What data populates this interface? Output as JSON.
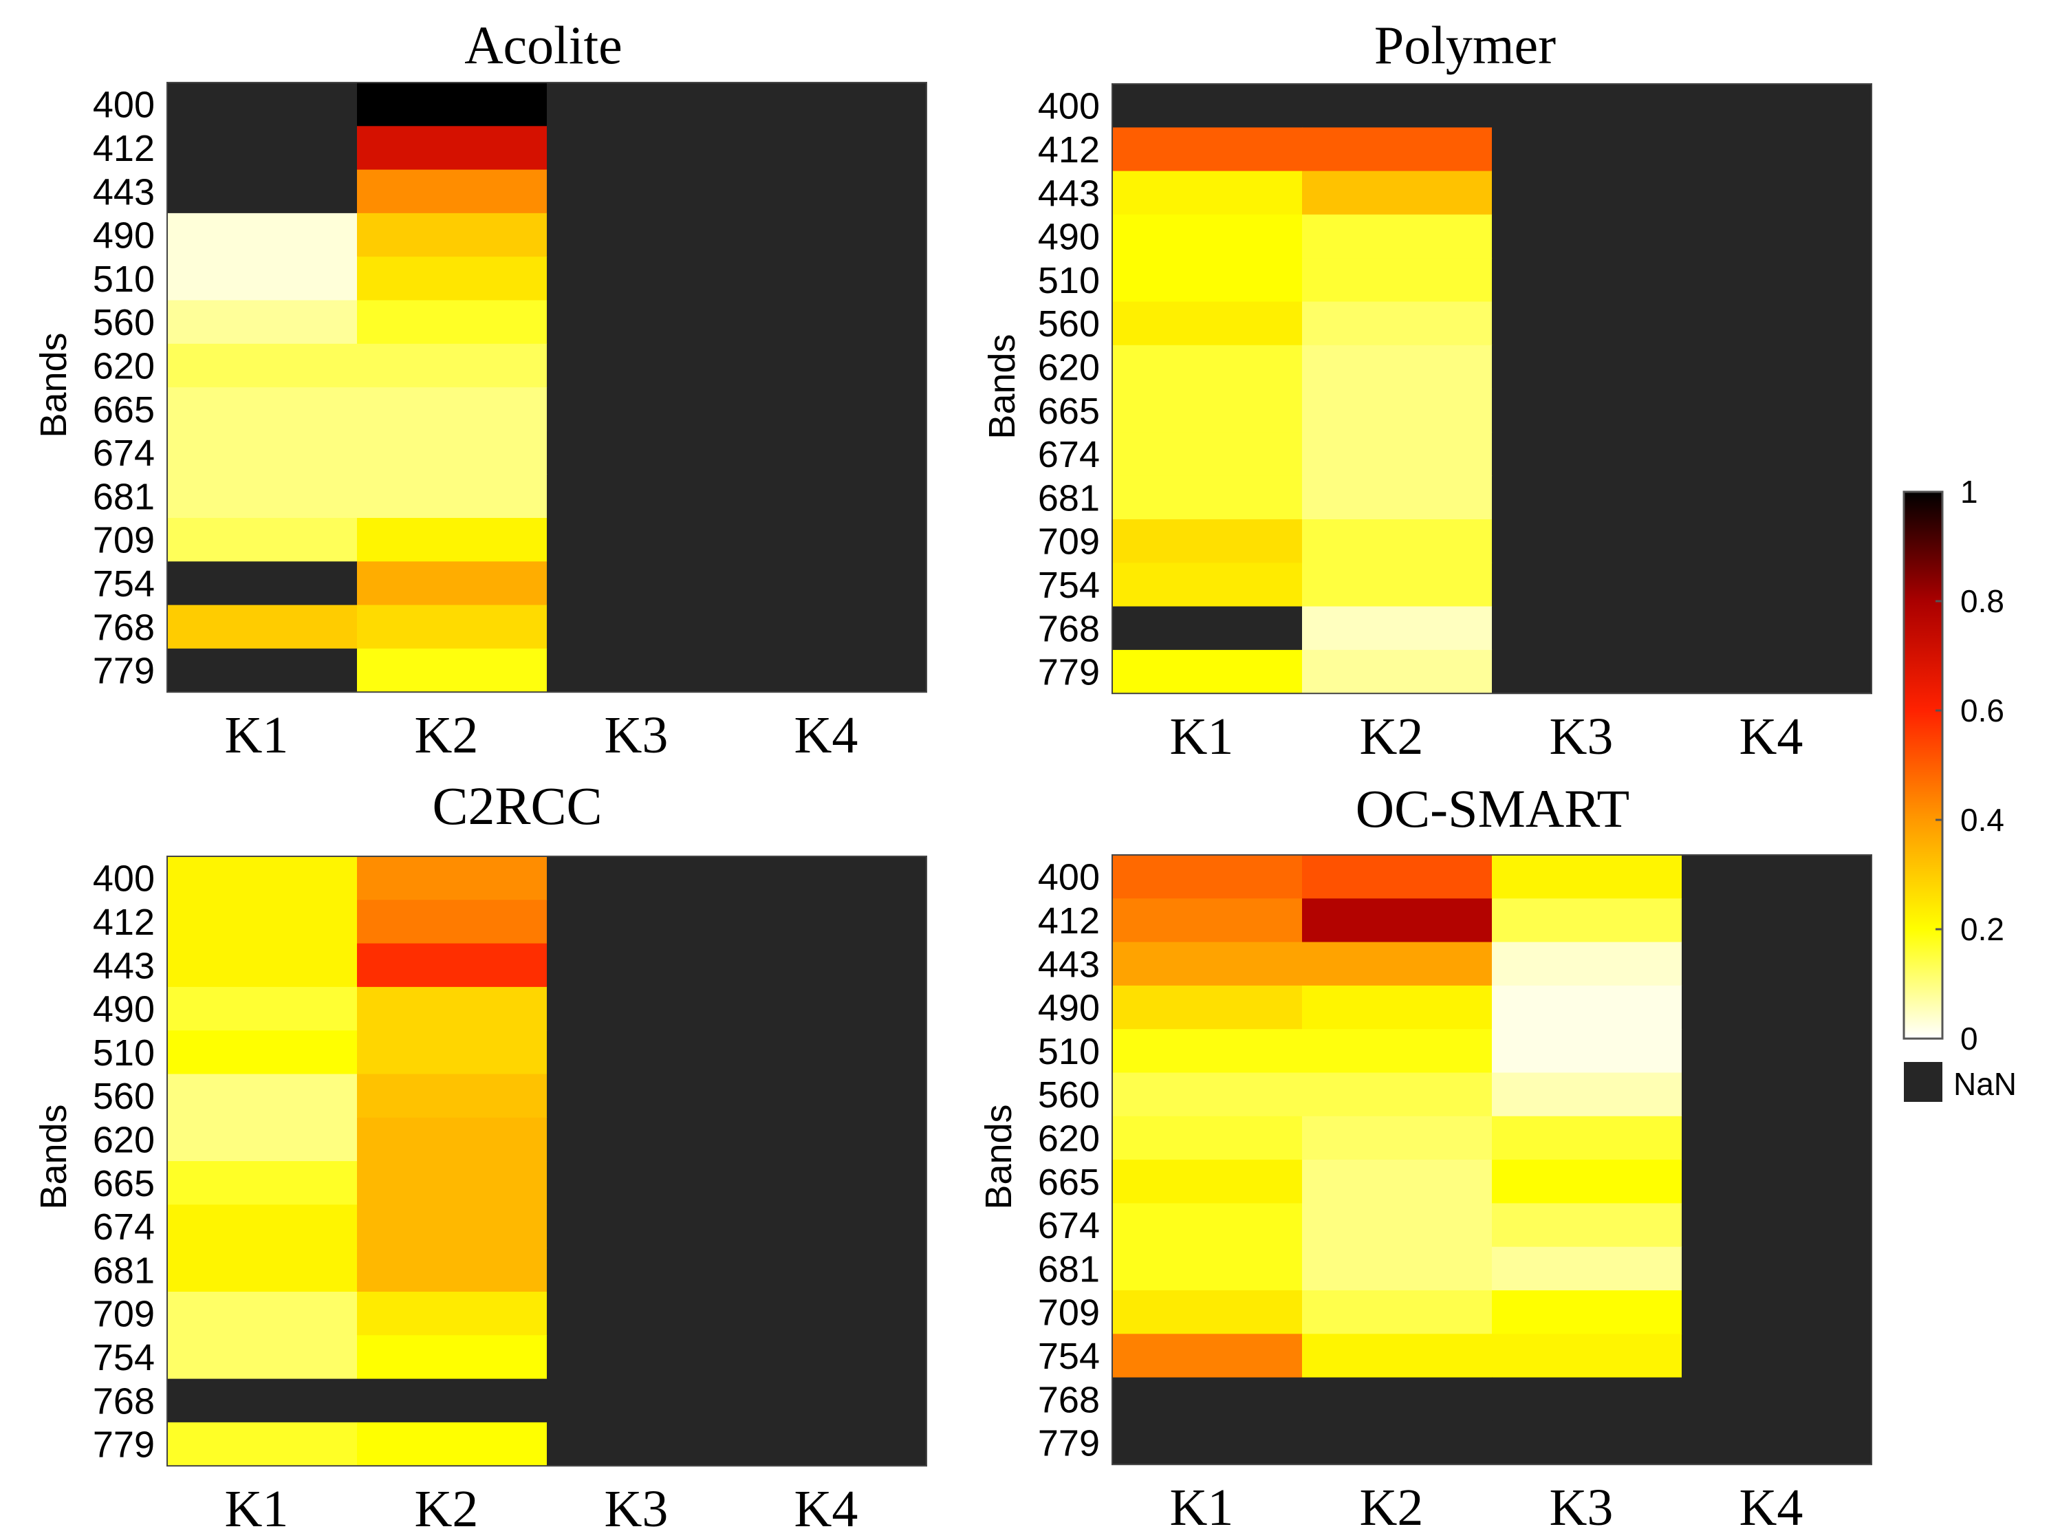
{
  "chart_data": {
    "type": "heatmap",
    "shared": {
      "bands": [
        "400",
        "412",
        "443",
        "490",
        "510",
        "560",
        "620",
        "665",
        "674",
        "681",
        "709",
        "754",
        "768",
        "779"
      ],
      "clusters": [
        "K1",
        "K2",
        "K3",
        "K4"
      ],
      "ylabel": "Bands",
      "colorbar": {
        "ticks": [
          "1",
          "0.8",
          "0.6",
          "0.4",
          "0.2",
          "0"
        ],
        "range": [
          0,
          1
        ],
        "nan_label": "NaN",
        "nan_color": "#262626"
      }
    },
    "panels": [
      {
        "title": "Acolite",
        "show_ylabel": true,
        "values": [
          [
            null,
            1.0,
            null,
            null
          ],
          [
            null,
            0.7,
            null,
            null
          ],
          [
            null,
            0.42,
            null,
            null
          ],
          [
            0.03,
            0.3,
            null,
            null
          ],
          [
            0.03,
            0.25,
            null,
            null
          ],
          [
            0.08,
            0.17,
            null,
            null
          ],
          [
            0.13,
            0.13,
            null,
            null
          ],
          [
            0.1,
            0.1,
            null,
            null
          ],
          [
            0.1,
            0.1,
            null,
            null
          ],
          [
            0.1,
            0.1,
            null,
            null
          ],
          [
            0.13,
            0.22,
            null,
            null
          ],
          [
            null,
            0.36,
            null,
            null
          ],
          [
            0.3,
            0.27,
            null,
            null
          ],
          [
            null,
            0.19,
            null,
            null
          ]
        ]
      },
      {
        "title": "Polymer",
        "show_ylabel": true,
        "values": [
          [
            null,
            null,
            null,
            null
          ],
          [
            0.5,
            0.5,
            null,
            null
          ],
          [
            0.22,
            0.32,
            null,
            null
          ],
          [
            0.2,
            0.16,
            null,
            null
          ],
          [
            0.2,
            0.16,
            null,
            null
          ],
          [
            0.23,
            0.12,
            null,
            null
          ],
          [
            0.16,
            0.1,
            null,
            null
          ],
          [
            0.16,
            0.1,
            null,
            null
          ],
          [
            0.16,
            0.1,
            null,
            null
          ],
          [
            0.16,
            0.1,
            null,
            null
          ],
          [
            0.26,
            0.15,
            null,
            null
          ],
          [
            0.24,
            0.15,
            null,
            null
          ],
          [
            null,
            0.05,
            null,
            null
          ],
          [
            0.2,
            0.08,
            null,
            null
          ]
        ]
      },
      {
        "title": "C2RCC",
        "show_ylabel": true,
        "values": [
          [
            0.22,
            0.42,
            null,
            null
          ],
          [
            0.22,
            0.45,
            null,
            null
          ],
          [
            0.22,
            0.58,
            null,
            null
          ],
          [
            0.16,
            0.28,
            null,
            null
          ],
          [
            0.2,
            0.28,
            null,
            null
          ],
          [
            0.1,
            0.32,
            null,
            null
          ],
          [
            0.1,
            0.34,
            null,
            null
          ],
          [
            0.17,
            0.34,
            null,
            null
          ],
          [
            0.22,
            0.34,
            null,
            null
          ],
          [
            0.22,
            0.34,
            null,
            null
          ],
          [
            0.12,
            0.24,
            null,
            null
          ],
          [
            0.12,
            0.2,
            null,
            null
          ],
          [
            null,
            null,
            null,
            null
          ],
          [
            0.17,
            0.2,
            null,
            null
          ]
        ]
      },
      {
        "title": "OC-SMART",
        "show_ylabel": true,
        "values": [
          [
            0.48,
            0.52,
            0.22,
            null
          ],
          [
            0.44,
            0.78,
            0.14,
            null
          ],
          [
            0.38,
            0.38,
            0.04,
            null
          ],
          [
            0.26,
            0.22,
            0.02,
            null
          ],
          [
            0.19,
            0.19,
            0.02,
            null
          ],
          [
            0.14,
            0.14,
            0.06,
            null
          ],
          [
            0.16,
            0.12,
            0.16,
            null
          ],
          [
            0.22,
            0.1,
            0.2,
            null
          ],
          [
            0.18,
            0.1,
            0.13,
            null
          ],
          [
            0.18,
            0.1,
            0.08,
            null
          ],
          [
            0.24,
            0.14,
            0.2,
            null
          ],
          [
            0.44,
            0.22,
            0.22,
            null
          ],
          [
            null,
            null,
            null,
            null
          ],
          [
            null,
            null,
            null,
            null
          ]
        ]
      }
    ]
  }
}
